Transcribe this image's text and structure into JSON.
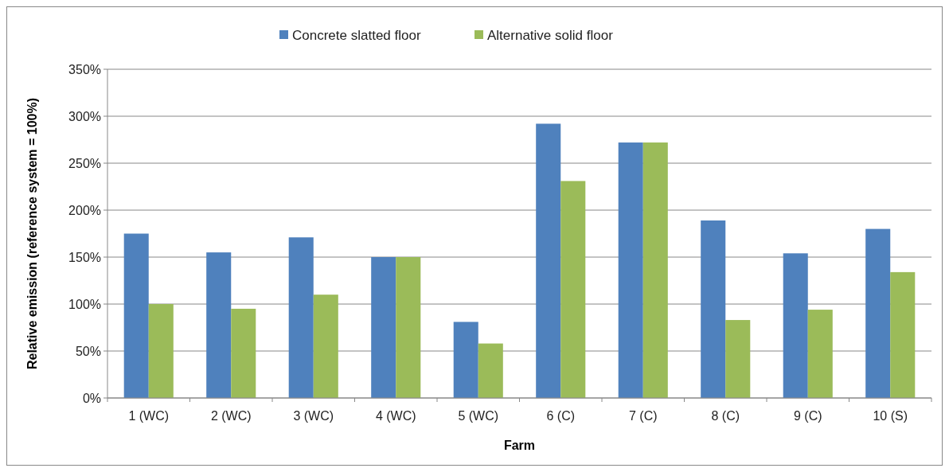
{
  "chart_data": {
    "type": "bar",
    "xlabel": "Farm",
    "ylabel": "Relative emission (reference system = 100%)",
    "categories": [
      "1 (WC)",
      "2 (WC)",
      "3 (WC)",
      "4 (WC)",
      "5 (WC)",
      "6 (C)",
      "7 (C)",
      "8 (C)",
      "9 (C)",
      "10 (S)"
    ],
    "series": [
      {
        "name": "Concrete slatted floor",
        "color": "#4f81bd",
        "values": [
          175,
          155,
          171,
          150,
          81,
          292,
          272,
          189,
          154,
          180
        ]
      },
      {
        "name": "Alternative solid floor",
        "color": "#9bbb59",
        "values": [
          100,
          95,
          110,
          150,
          58,
          231,
          272,
          83,
          94,
          134
        ]
      }
    ],
    "ylim": [
      0,
      350
    ],
    "yticks": [
      {
        "value": 0,
        "label": "0%"
      },
      {
        "value": 50,
        "label": "50%"
      },
      {
        "value": 100,
        "label": "100%"
      },
      {
        "value": 150,
        "label": "150%"
      },
      {
        "value": 200,
        "label": "200%"
      },
      {
        "value": 250,
        "label": "250%"
      },
      {
        "value": 300,
        "label": "300%"
      },
      {
        "value": 350,
        "label": "350%"
      }
    ],
    "grid": "y",
    "legend": "top"
  }
}
